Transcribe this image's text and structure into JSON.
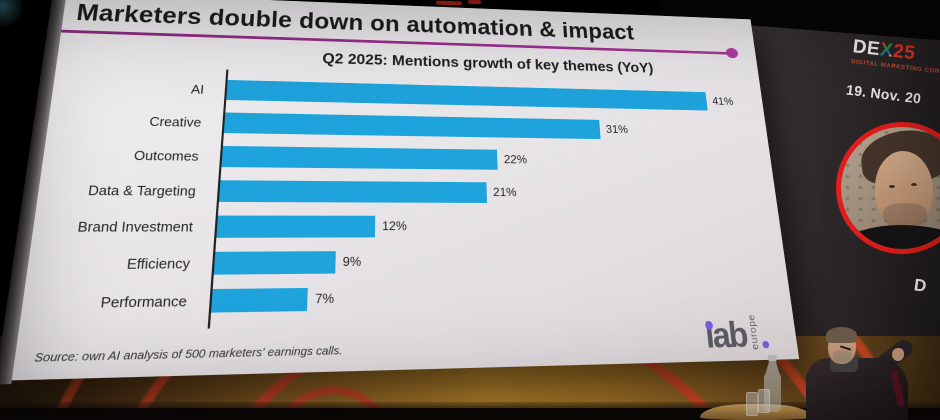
{
  "slide": {
    "title": "Marketers double down on automation & impact",
    "subtitle": "Q2 2025: Mentions growth of key themes (YoY)",
    "source": "Source: own AI analysis of 500 marketers' earnings calls.",
    "iab_logo": {
      "text": "iab",
      "region": "europe"
    }
  },
  "chart_data": {
    "type": "bar",
    "orientation": "horizontal",
    "title": "Q2 2025: Mentions growth of key themes (YoY)",
    "categories": [
      "AI",
      "Creative",
      "Outcomes",
      "Data & Targeting",
      "Brand Investment",
      "Efficiency",
      "Performance"
    ],
    "values": [
      41,
      31,
      22,
      21,
      12,
      9,
      7
    ],
    "labels": [
      "41%",
      "31%",
      "22%",
      "21%",
      "12%",
      "9%",
      "7%"
    ],
    "unit": "%",
    "xlim": [
      0,
      45
    ],
    "bar_color": "#1fa3dd",
    "axis_color": "#222222",
    "grid": false,
    "legend": "none"
  },
  "wall": {
    "brand": {
      "de": "DE",
      "x": "X",
      "num": "25",
      "tagline": "DIGITAL MARKETING CONFERENCE"
    },
    "date": "19. Nov. 20",
    "speaker_name_partial": "D"
  },
  "colors": {
    "accent_magenta": "#a0308f",
    "bar_blue": "#1fa3dd",
    "dex_red": "#e23128",
    "ring_red": "#e8452e",
    "backdrop_amber": "#c8922f",
    "iab_purple": "#7a5bdc"
  }
}
